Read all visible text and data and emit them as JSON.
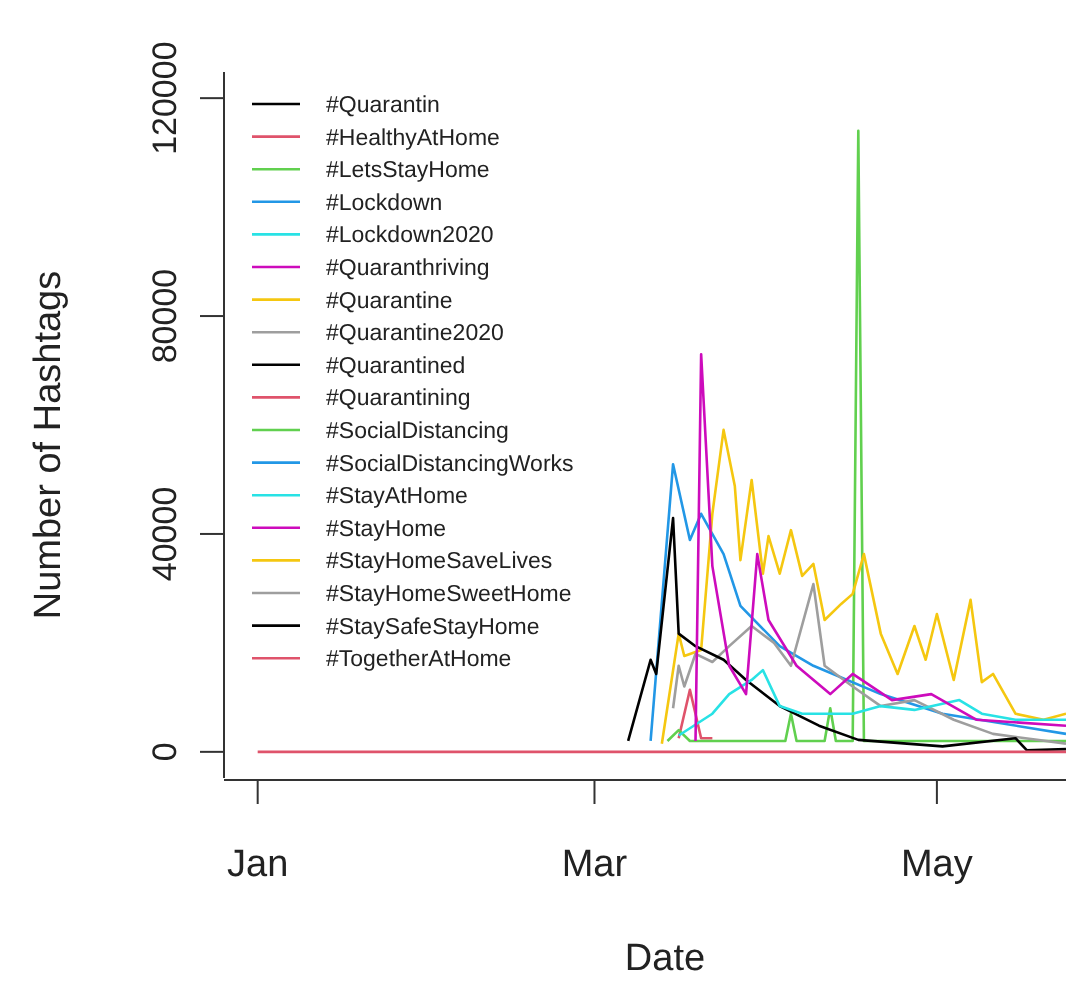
{
  "chart_data": {
    "type": "line",
    "xlabel": "Date",
    "ylabel": "Number of Hashtags",
    "xlim": [
      "2019-12-26",
      "2020-05-24"
    ],
    "ylim": [
      -4800,
      124800
    ],
    "xticks": [
      {
        "value": "2020-01-01",
        "label": "Jan"
      },
      {
        "value": "2020-03-01",
        "label": "Mar"
      },
      {
        "value": "2020-05-01",
        "label": "May"
      }
    ],
    "yticks": [
      0,
      40000,
      80000,
      120000
    ],
    "legend": "top left",
    "series": [
      {
        "name": "#Quarantin",
        "color": "#000000"
      },
      {
        "name": "#HealthyAtHome",
        "color": "#DF536B",
        "x": [
          "2020-03-16",
          "2020-03-18",
          "2020-03-20",
          "2020-03-22"
        ],
        "values": [
          2500,
          11400,
          2500,
          2500
        ]
      },
      {
        "name": "#LetsStayHome",
        "color": "#61D04F",
        "x": [
          "2020-03-14",
          "2020-03-16",
          "2020-03-18",
          "2020-04-04",
          "2020-04-05",
          "2020-04-06",
          "2020-04-11",
          "2020-04-12",
          "2020-04-13",
          "2020-04-16",
          "2020-04-17",
          "2020-04-18",
          "2020-05-24"
        ],
        "values": [
          2000,
          4000,
          2000,
          2000,
          7000,
          2000,
          2000,
          8000,
          2000,
          2000,
          114000,
          2000,
          2000
        ]
      },
      {
        "name": "#Lockdown",
        "color": "#2297E6",
        "x": [
          "2020-03-11",
          "2020-03-15",
          "2020-03-18",
          "2020-03-20",
          "2020-03-24",
          "2020-03-27",
          "2020-04-03",
          "2020-04-09",
          "2020-04-21",
          "2020-05-02",
          "2020-05-24"
        ],
        "values": [
          2000,
          52800,
          38900,
          43700,
          36300,
          26800,
          19400,
          15800,
          10600,
          7000,
          3300
        ]
      },
      {
        "name": "#Lockdown2020",
        "color": "#28E2E5"
      },
      {
        "name": "#Quaranthriving",
        "color": "#CD0BBC"
      },
      {
        "name": "#Quarantine",
        "color": "#F5C710",
        "x": [
          "2020-03-13",
          "2020-03-16",
          "2020-03-17",
          "2020-03-20",
          "2020-03-22",
          "2020-03-24",
          "2020-03-26",
          "2020-03-27",
          "2020-03-29",
          "2020-03-31",
          "2020-04-01",
          "2020-04-03",
          "2020-04-05",
          "2020-04-07",
          "2020-04-09",
          "2020-04-11",
          "2020-04-14",
          "2020-04-16",
          "2020-04-18",
          "2020-04-21",
          "2020-04-24",
          "2020-04-27",
          "2020-04-29",
          "2020-05-01",
          "2020-05-04",
          "2020-05-07",
          "2020-05-09",
          "2020-05-11",
          "2020-05-15",
          "2020-05-20",
          "2020-05-24"
        ],
        "values": [
          1500,
          21700,
          17600,
          18700,
          43700,
          59100,
          48800,
          35200,
          49900,
          32700,
          39600,
          32700,
          40700,
          32300,
          34500,
          24200,
          27200,
          29000,
          36300,
          21700,
          14300,
          23100,
          16900,
          25300,
          13200,
          27900,
          12800,
          14300,
          7000,
          5900,
          7000
        ]
      },
      {
        "name": "#Quarantine2020",
        "color": "#9E9E9E",
        "x": [
          "2020-03-15",
          "2020-03-16",
          "2020-03-17",
          "2020-03-19",
          "2020-03-22",
          "2020-03-25",
          "2020-03-29",
          "2020-04-02",
          "2020-04-05",
          "2020-04-09",
          "2020-04-11",
          "2020-04-16",
          "2020-04-21",
          "2020-04-27",
          "2020-05-04",
          "2020-05-11",
          "2020-05-24"
        ],
        "values": [
          8000,
          15800,
          12000,
          18000,
          16500,
          19400,
          23100,
          20000,
          15800,
          30800,
          15800,
          12000,
          8400,
          9500,
          5900,
          3300,
          1500
        ]
      },
      {
        "name": "#Quarantined",
        "color": "#000000",
        "x": [
          "2020-03-07",
          "2020-03-11",
          "2020-03-12",
          "2020-03-15",
          "2020-03-16",
          "2020-03-19",
          "2020-03-24",
          "2020-03-28",
          "2020-04-03",
          "2020-04-10",
          "2020-04-17",
          "2020-05-02",
          "2020-05-15",
          "2020-05-17",
          "2020-05-24"
        ],
        "values": [
          2000,
          16900,
          14300,
          42900,
          21700,
          19400,
          16900,
          13200,
          8400,
          4800,
          2200,
          1000,
          2500,
          300,
          500
        ]
      },
      {
        "name": "#Quarantining",
        "color": "#DF536B"
      },
      {
        "name": "#SocialDistancing",
        "color": "#61D04F"
      },
      {
        "name": "#SocialDistancingWorks",
        "color": "#2297E6"
      },
      {
        "name": "#StayAtHome",
        "color": "#28E2E5",
        "x": [
          "2020-03-16",
          "2020-03-22",
          "2020-03-25",
          "2020-03-29",
          "2020-03-31",
          "2020-04-03",
          "2020-04-07",
          "2020-04-16",
          "2020-04-21",
          "2020-04-27",
          "2020-05-05",
          "2020-05-09",
          "2020-05-15",
          "2020-05-24"
        ],
        "values": [
          3000,
          7000,
          10600,
          13200,
          15000,
          8400,
          7000,
          7000,
          8400,
          7700,
          9500,
          7000,
          5900,
          5900
        ]
      },
      {
        "name": "#StayHome",
        "color": "#CD0BBC",
        "x": [
          "2020-03-19",
          "2020-03-20",
          "2020-03-22",
          "2020-03-25",
          "2020-03-28",
          "2020-03-30",
          "2020-04-01",
          "2020-04-06",
          "2020-04-12",
          "2020-04-16",
          "2020-04-23",
          "2020-04-30",
          "2020-05-08",
          "2020-05-24"
        ],
        "values": [
          2000,
          73000,
          34100,
          15800,
          10600,
          36300,
          24200,
          15800,
          10600,
          14300,
          9500,
          10600,
          5900,
          4800
        ]
      },
      {
        "name": "#StayHomeSaveLives",
        "color": "#F5C710"
      },
      {
        "name": "#StayHomeSweetHome",
        "color": "#9E9E9E"
      },
      {
        "name": "#StaySafeStayHome",
        "color": "#000000"
      },
      {
        "name": "#TogetherAtHome",
        "color": "#DF536B",
        "x": [
          "2020-01-01",
          "2020-03-01",
          "2020-05-24"
        ],
        "values": [
          0,
          0,
          0
        ]
      }
    ]
  }
}
